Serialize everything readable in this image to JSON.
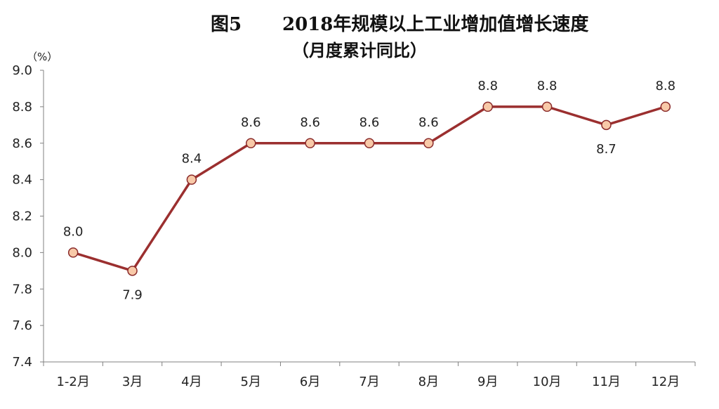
{
  "header": {
    "figure_label": "图5",
    "title": "2018年规模以上工业增加值增长速度",
    "subtitle": "（月度累计同比）"
  },
  "chart_data": {
    "type": "line",
    "title": "2018年规模以上工业增加值增长速度",
    "subtitle": "（月度累计同比）",
    "ylabel": "（%）",
    "xlabel": "",
    "categories": [
      "1-2月",
      "3月",
      "4月",
      "5月",
      "6月",
      "7月",
      "8月",
      "9月",
      "10月",
      "11月",
      "12月"
    ],
    "values": [
      8.0,
      7.9,
      8.4,
      8.6,
      8.6,
      8.6,
      8.6,
      8.8,
      8.8,
      8.7,
      8.8
    ],
    "data_labels": [
      "8.0",
      "7.9",
      "8.4",
      "8.6",
      "8.6",
      "8.6",
      "8.6",
      "8.8",
      "8.8",
      "8.7",
      "8.8"
    ],
    "ylim": [
      7.4,
      9.0
    ],
    "yticks": [
      "7.4",
      "7.6",
      "7.8",
      "8.0",
      "8.2",
      "8.4",
      "8.6",
      "8.8",
      "9.0"
    ],
    "grid": false,
    "legend": "none",
    "line_color": "#9b2f2f",
    "marker_fill": "#f8c9a8",
    "marker_stroke": "#8a2a2a",
    "axis_color": "#808080"
  }
}
